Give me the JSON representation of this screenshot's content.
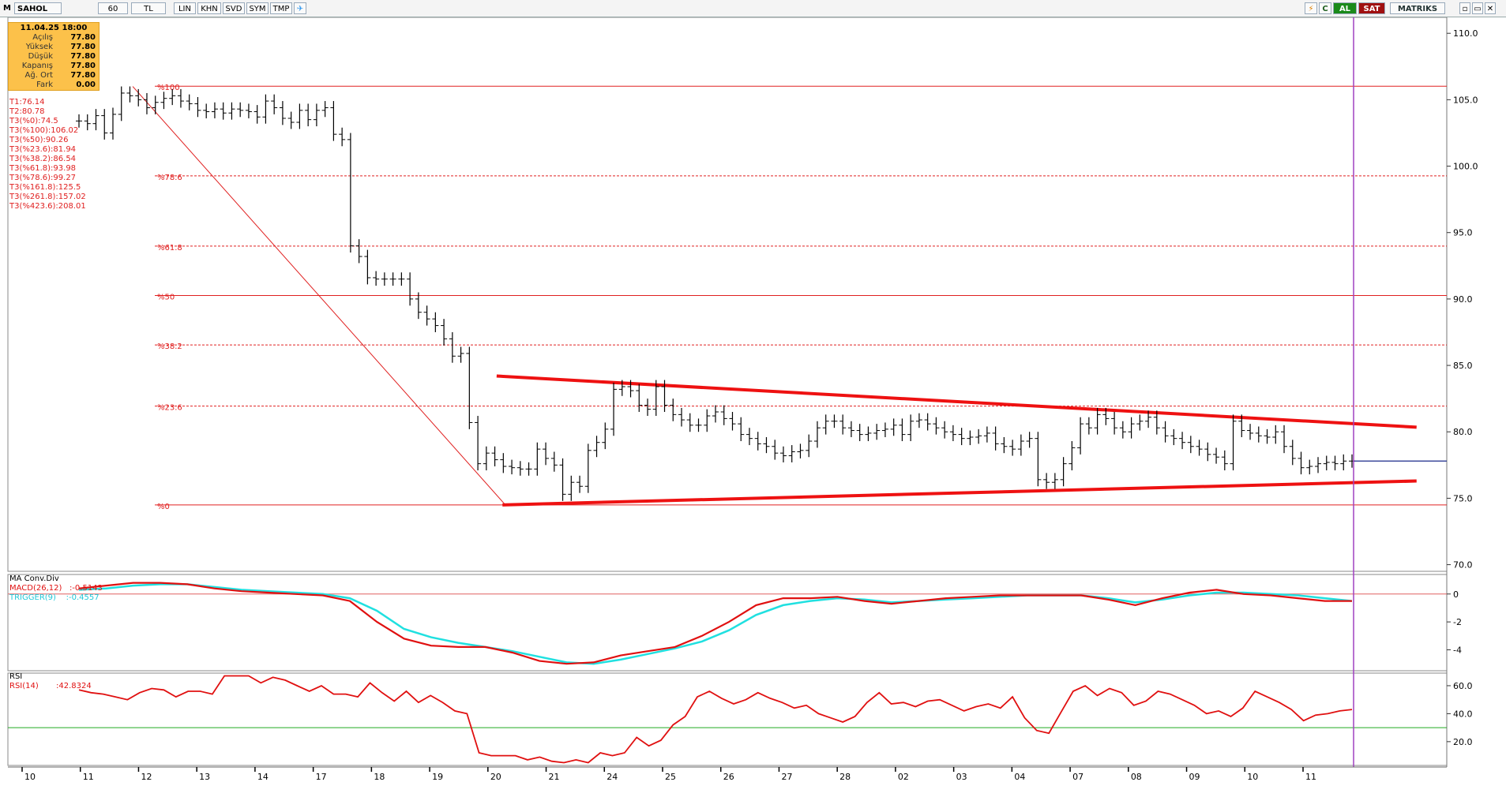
{
  "toolbar": {
    "symbol": "SAHOL",
    "period": "60",
    "currency": "TL",
    "buttons": [
      "LIN",
      "KHN",
      "SVD",
      "SYM",
      "TMP"
    ],
    "buy_label": "AL",
    "sell_label": "SAT",
    "brand": "MATRIKS"
  },
  "info_box": {
    "date": "11.04.25 18:00",
    "rows": [
      {
        "label": "Açılış",
        "value": "77.80"
      },
      {
        "label": "Yüksek",
        "value": "77.80"
      },
      {
        "label": "Düşük",
        "value": "77.80"
      },
      {
        "label": "Kapanış",
        "value": "77.80"
      },
      {
        "label": "Ağ. Ort",
        "value": "77.80"
      },
      {
        "label": "Fark",
        "value": "0.00"
      }
    ]
  },
  "fib_text": [
    "T1:76.14",
    "T2:80.78",
    "T3(%0):74.5",
    "T3(%100):106.02",
    "T3(%50):90.26",
    "T3(%23.6):81.94",
    "T3(%38.2):86.54",
    "T3(%61.8):93.98",
    "T3(%78.6):99.27",
    "T3(%161.8):125.5",
    "T3(%261.8):157.02",
    "T3(%423.6):208.01"
  ],
  "macd_legend": {
    "title": "MA Conv.Div",
    "macd": "MACD(26,12)   :-0.5143",
    "trigger": "TRIGGER(9)    :-0.4557"
  },
  "rsi_legend": {
    "title": "RSI",
    "rsi": "RSI(14)       :42.8324"
  },
  "colors": {
    "price": "#000000",
    "fib": "#e02020",
    "channel": "#ee1111",
    "macd": "#e01010",
    "trigger": "#20e0e0",
    "rsi": "#e01010",
    "rsi_level": "#22aa22",
    "cursor": "#a040c0",
    "current_price": "#1a2a8a"
  },
  "chart_data": [
    {
      "type": "line",
      "title": "SAHOL",
      "x_labels": [
        "10",
        "11",
        "12",
        "13",
        "14",
        "17",
        "18",
        "19",
        "20",
        "21",
        "24",
        "25",
        "26",
        "27",
        "28",
        "02",
        "03",
        "04",
        "07",
        "08",
        "09",
        "10",
        "11"
      ],
      "y_ticks": [
        110,
        105,
        100,
        95,
        90,
        85,
        80,
        75,
        70
      ],
      "ylim": [
        69.5,
        111.2
      ],
      "fib_levels": [
        {
          "label": "%100",
          "value": 106.02,
          "style": "solid"
        },
        {
          "label": "%78.6",
          "value": 99.27,
          "style": "dashed"
        },
        {
          "label": "%61.8",
          "value": 93.98,
          "style": "dashed"
        },
        {
          "label": "%50",
          "value": 90.26,
          "style": "solid"
        },
        {
          "label": "%38.2",
          "value": 86.54,
          "style": "dashed"
        },
        {
          "label": "%23.6",
          "value": 81.94,
          "style": "dashed"
        },
        {
          "label": "%0",
          "value": 74.5,
          "style": "solid"
        }
      ],
      "trend_upper": [
        [
          8.15,
          84.2
        ],
        [
          23.95,
          80.35
        ]
      ],
      "trend_lower": [
        [
          8.25,
          74.5
        ],
        [
          23.95,
          76.3
        ]
      ],
      "fib_diagonal": [
        [
          1.9,
          106.0
        ],
        [
          8.3,
          74.5
        ]
      ],
      "current_price": 77.8,
      "closes": [
        103.4,
        103.2,
        103.8,
        102.5,
        103.9,
        105.5,
        105.3,
        105.0,
        104.4,
        104.8,
        105.1,
        105.3,
        104.9,
        104.7,
        104.2,
        104.1,
        104.3,
        104.0,
        104.3,
        104.2,
        104.1,
        103.7,
        104.9,
        104.4,
        103.6,
        103.3,
        104.2,
        103.5,
        104.2,
        104.4,
        102.4,
        102.0,
        94.0,
        93.2,
        91.6,
        91.5,
        91.5,
        91.5,
        91.5,
        90.0,
        89.0,
        88.5,
        88.0,
        87.0,
        85.7,
        85.9,
        80.7,
        77.6,
        78.4,
        77.9,
        77.4,
        77.3,
        77.2,
        77.2,
        78.7,
        78.0,
        77.5,
        75.3,
        76.2,
        75.9,
        78.6,
        79.2,
        80.2,
        83.2,
        83.4,
        83.1,
        82.0,
        81.7,
        83.4,
        82.0,
        81.3,
        80.9,
        80.5,
        80.5,
        81.2,
        81.5,
        81.0,
        80.6,
        79.8,
        79.5,
        79.1,
        78.9,
        78.4,
        78.2,
        78.5,
        78.6,
        79.3,
        80.3,
        80.8,
        80.8,
        80.3,
        80.1,
        79.8,
        79.9,
        80.1,
        80.2,
        80.5,
        79.8,
        80.8,
        80.9,
        80.6,
        80.3,
        80.0,
        79.8,
        79.5,
        79.6,
        79.7,
        79.9,
        79.1,
        78.9,
        78.7,
        79.3,
        79.5,
        76.4,
        76.2,
        76.4,
        77.6,
        78.8,
        80.6,
        80.3,
        81.3,
        81.0,
        80.3,
        80.0,
        80.6,
        80.8,
        81.1,
        80.3,
        79.7,
        79.5,
        79.2,
        78.9,
        78.7,
        78.3,
        78.1,
        77.6,
        80.8,
        80.1,
        79.9,
        79.7,
        79.6,
        80.0,
        78.9,
        78.0,
        77.3,
        77.4,
        77.6,
        77.7,
        77.6,
        77.8,
        77.8
      ]
    },
    {
      "type": "line",
      "title": "MA Conv.Div",
      "y_ticks": [
        0,
        -2,
        -4
      ],
      "ylim": [
        -5.5,
        1.4
      ],
      "series": [
        {
          "name": "MACD(26,12)",
          "values": [
            0.4,
            0.6,
            0.8,
            0.8,
            0.7,
            0.4,
            0.2,
            0.1,
            0.0,
            -0.1,
            -0.5,
            -2.0,
            -3.2,
            -3.7,
            -3.8,
            -3.8,
            -4.2,
            -4.8,
            -5.0,
            -4.9,
            -4.4,
            -4.1,
            -3.8,
            -3.0,
            -2.0,
            -0.8,
            -0.3,
            -0.3,
            -0.2,
            -0.5,
            -0.7,
            -0.5,
            -0.3,
            -0.2,
            -0.1,
            -0.1,
            -0.1,
            -0.1,
            -0.4,
            -0.8,
            -0.3,
            0.1,
            0.3,
            0.0,
            -0.1,
            -0.3,
            -0.5,
            -0.5
          ]
        },
        {
          "name": "TRIGGER(9)",
          "values": [
            0.3,
            0.4,
            0.6,
            0.7,
            0.7,
            0.5,
            0.3,
            0.2,
            0.1,
            0.0,
            -0.3,
            -1.2,
            -2.5,
            -3.1,
            -3.5,
            -3.8,
            -4.1,
            -4.5,
            -4.9,
            -5.0,
            -4.7,
            -4.3,
            -3.9,
            -3.4,
            -2.6,
            -1.5,
            -0.8,
            -0.5,
            -0.3,
            -0.4,
            -0.6,
            -0.5,
            -0.4,
            -0.3,
            -0.2,
            -0.1,
            -0.1,
            -0.1,
            -0.3,
            -0.6,
            -0.4,
            -0.1,
            0.1,
            0.1,
            0.0,
            -0.1,
            -0.3,
            -0.5
          ]
        }
      ]
    },
    {
      "type": "line",
      "title": "RSI",
      "y_ticks": [
        60,
        40,
        20
      ],
      "ylim": [
        3,
        69
      ],
      "level": 30,
      "series": [
        {
          "name": "RSI(14)",
          "values": [
            57,
            55,
            54,
            52,
            50,
            55,
            58,
            57,
            52,
            56,
            56,
            54,
            67,
            67,
            67,
            62,
            66,
            64,
            60,
            56,
            60,
            54,
            54,
            52,
            62,
            55,
            49,
            56,
            48,
            53,
            48,
            42,
            40,
            12,
            10,
            10,
            10,
            7,
            9,
            6,
            5,
            7,
            5,
            12,
            10,
            12,
            23,
            17,
            21,
            32,
            38,
            52,
            56,
            51,
            47,
            50,
            55,
            51,
            48,
            44,
            46,
            40,
            37,
            34,
            38,
            48,
            55,
            47,
            48,
            45,
            49,
            50,
            46,
            42,
            45,
            47,
            44,
            52,
            37,
            28,
            26,
            41,
            56,
            60,
            53,
            58,
            55,
            46,
            49,
            56,
            54,
            50,
            46,
            40,
            42,
            38,
            44,
            56,
            52,
            48,
            43,
            35,
            39,
            40,
            42,
            43
          ]
        }
      ]
    }
  ]
}
